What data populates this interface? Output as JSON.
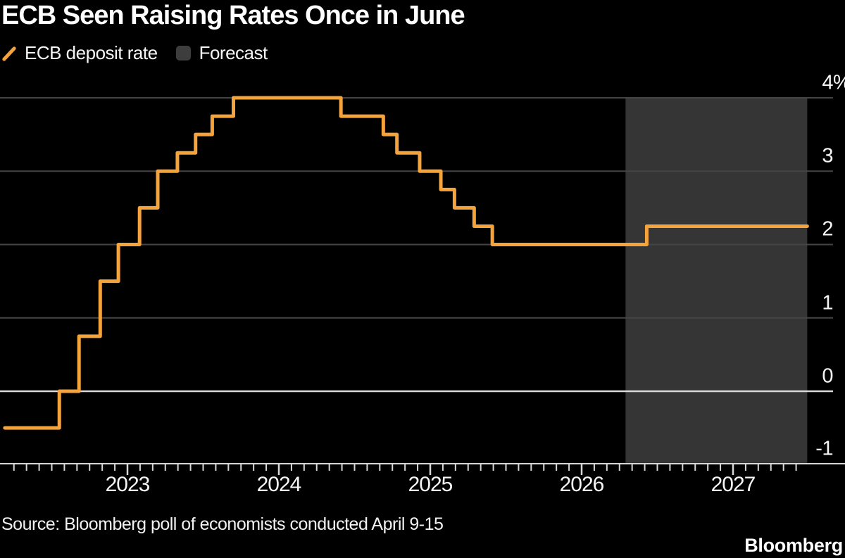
{
  "header": {
    "title": "ECB Seen Raising Rates Once in June"
  },
  "legend": {
    "items": [
      {
        "label": "ECB deposit rate",
        "swatch": "orange-line"
      },
      {
        "label": "Forecast",
        "swatch": "gray-rounded-square"
      }
    ]
  },
  "colors": {
    "background": "#000000",
    "line": "#F5A33C",
    "forecast_band": "#353535",
    "gridline": "#454545",
    "zero_line": "#D9D9D9",
    "axis": "#D6D6D6",
    "text": "#F5F5F5"
  },
  "y_axis": {
    "range": [
      -1,
      4
    ],
    "labels": [
      {
        "text": "4",
        "suffix": "%",
        "value": 4,
        "gridline": true
      },
      {
        "text": "3",
        "suffix": "",
        "value": 3,
        "gridline": true
      },
      {
        "text": "2",
        "suffix": "",
        "value": 2,
        "gridline": true
      },
      {
        "text": "1",
        "suffix": "",
        "value": 1,
        "gridline": true
      },
      {
        "text": "0",
        "suffix": "",
        "value": 0,
        "gridline": true,
        "zero": true
      },
      {
        "text": "-1",
        "suffix": "",
        "value": -1,
        "gridline": false
      }
    ]
  },
  "x_axis": {
    "labels": [
      {
        "label": "2023",
        "t": 2023
      },
      {
        "label": "2024",
        "t": 2024
      },
      {
        "label": "2025",
        "t": 2025
      },
      {
        "label": "2026",
        "t": 2026
      },
      {
        "label": "2027",
        "t": 2027
      }
    ],
    "minor_ticks": "monthly",
    "tick_start_t": 2022.25,
    "tick_end_t": 2027.45
  },
  "chart_data": {
    "type": "line",
    "subtype": "step",
    "title": "ECB Seen Raising Rates Once in June",
    "series_name": "ECB deposit rate",
    "unit": "%",
    "ylim": [
      -1,
      4
    ],
    "x_range": [
      2022.19,
      2027.49
    ],
    "grid": "horizontal",
    "legend_position": "top-left",
    "forecast_region": {
      "start_t": 2026.29,
      "end_t": 2027.49,
      "label": "Forecast"
    },
    "steps": [
      {
        "t": 2022.19,
        "rate": -0.5,
        "date": "start"
      },
      {
        "t": 2022.55,
        "rate": 0.0,
        "date": "Jul 2022"
      },
      {
        "t": 2022.68,
        "rate": 0.75,
        "date": "Sep 2022"
      },
      {
        "t": 2022.82,
        "rate": 1.5,
        "date": "Nov 2022"
      },
      {
        "t": 2022.94,
        "rate": 2.0,
        "date": "Dec 2022"
      },
      {
        "t": 2023.08,
        "rate": 2.5,
        "date": "Feb 2023"
      },
      {
        "t": 2023.2,
        "rate": 3.0,
        "date": "Mar 2023"
      },
      {
        "t": 2023.33,
        "rate": 3.25,
        "date": "May 2023"
      },
      {
        "t": 2023.45,
        "rate": 3.5,
        "date": "Jun 2023"
      },
      {
        "t": 2023.56,
        "rate": 3.75,
        "date": "Aug 2023"
      },
      {
        "t": 2023.7,
        "rate": 4.0,
        "date": "Sep 2023"
      },
      {
        "t": 2024.41,
        "rate": 3.75,
        "date": "Jun 2024"
      },
      {
        "t": 2024.69,
        "rate": 3.5,
        "date": "Sep 2024"
      },
      {
        "t": 2024.78,
        "rate": 3.25,
        "date": "Oct 2024"
      },
      {
        "t": 2024.93,
        "rate": 3.0,
        "date": "Dec 2024"
      },
      {
        "t": 2025.07,
        "rate": 2.75,
        "date": "Feb 2025"
      },
      {
        "t": 2025.16,
        "rate": 2.5,
        "date": "Mar 2025"
      },
      {
        "t": 2025.29,
        "rate": 2.25,
        "date": "Apr 2025"
      },
      {
        "t": 2025.41,
        "rate": 2.0,
        "date": "Jun 2025"
      },
      {
        "t": 2026.43,
        "rate": 2.25,
        "date": "Jun 2026 (forecast hike)"
      }
    ],
    "end_t": 2027.49
  },
  "footer": {
    "source": "Source: Bloomberg poll of economists conducted April 9-15",
    "logo": "Bloomberg"
  }
}
